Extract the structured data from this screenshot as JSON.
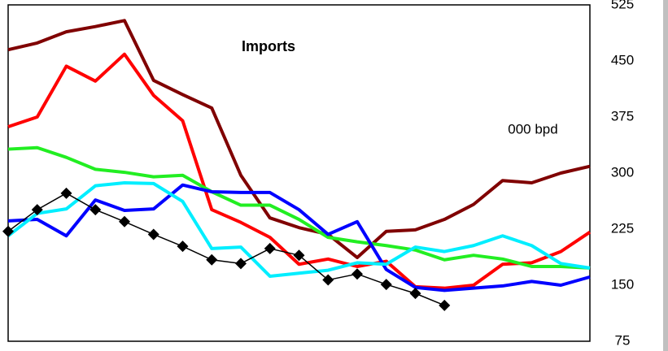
{
  "chart_data": {
    "type": "line",
    "title": "Imports",
    "annotation": "000 bpd",
    "categories": [
      null,
      null,
      null,
      null,
      null,
      null,
      null,
      null,
      null,
      null,
      null,
      null,
      null,
      null,
      null,
      null,
      null,
      null,
      null,
      null,
      null
    ],
    "ylim": [
      75,
      525
    ],
    "yticks": [
      75,
      150,
      225,
      300,
      375,
      450,
      525
    ],
    "y_axis_side": "right",
    "series": [
      {
        "color": "#800000",
        "values": [
          465,
          474,
          489,
          496,
          504,
          424,
          405,
          387,
          297,
          240,
          227,
          218,
          187,
          222,
          224,
          238,
          258,
          290,
          287,
          300,
          309
        ]
      },
      {
        "color": "#ff0000",
        "values": [
          362,
          375,
          443,
          423,
          459,
          404,
          370,
          251,
          234,
          214,
          178,
          185,
          175,
          182,
          148,
          146,
          150,
          178,
          180,
          195,
          221
        ]
      },
      {
        "color": "#22ee22",
        "values": [
          332,
          334,
          321,
          305,
          301,
          295,
          297,
          275,
          257,
          257,
          238,
          214,
          208,
          203,
          197,
          184,
          190,
          185,
          175,
          175,
          173
        ]
      },
      {
        "color": "#0000ff",
        "values": [
          236,
          238,
          216,
          264,
          250,
          252,
          284,
          275,
          274,
          274,
          251,
          218,
          235,
          171,
          147,
          143,
          146,
          149,
          155,
          150,
          161
        ]
      },
      {
        "color": "#00eeff",
        "values": [
          216,
          246,
          252,
          283,
          287,
          286,
          262,
          199,
          201,
          162,
          166,
          170,
          180,
          178,
          201,
          195,
          203,
          216,
          203,
          179,
          173
        ]
      },
      {
        "color": "#000000",
        "marker": "diamond",
        "values": [
          222,
          251,
          273,
          251,
          235,
          218,
          202,
          184,
          179,
          199,
          190,
          157,
          165,
          151,
          139,
          123,
          null,
          null,
          null,
          null,
          null
        ]
      }
    ]
  }
}
